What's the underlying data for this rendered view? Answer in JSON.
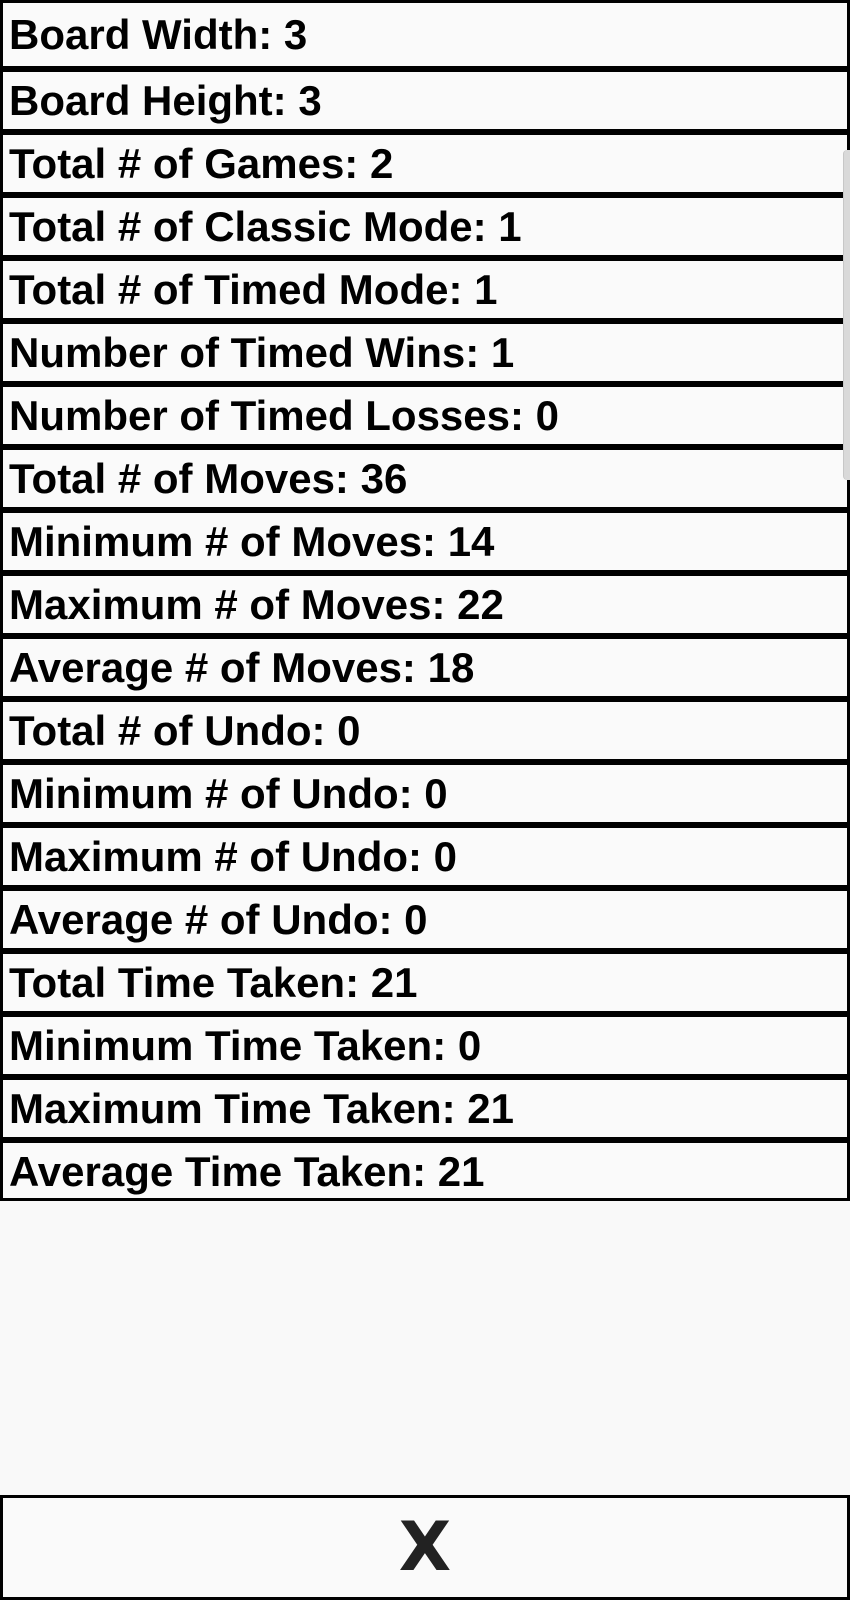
{
  "stats": [
    "Board Width: 3",
    "Board Height: 3",
    "Total # of Games: 2",
    "Total # of Classic Mode: 1",
    "Total # of Timed Mode: 1",
    "Number of Timed Wins: 1",
    "Number of Timed Losses: 0",
    "Total # of Moves: 36",
    "Minimum # of Moves: 14",
    "Maximum # of Moves: 22",
    "Average # of Moves: 18",
    "Total # of Undo: 0",
    "Minimum # of Undo: 0",
    "Maximum # of Undo: 0",
    "Average # of Undo: 0",
    "Total Time Taken: 21",
    "Minimum Time Taken: 0",
    "Maximum Time Taken: 21",
    "Average Time Taken: 21"
  ],
  "close_button": {
    "label": "X"
  }
}
